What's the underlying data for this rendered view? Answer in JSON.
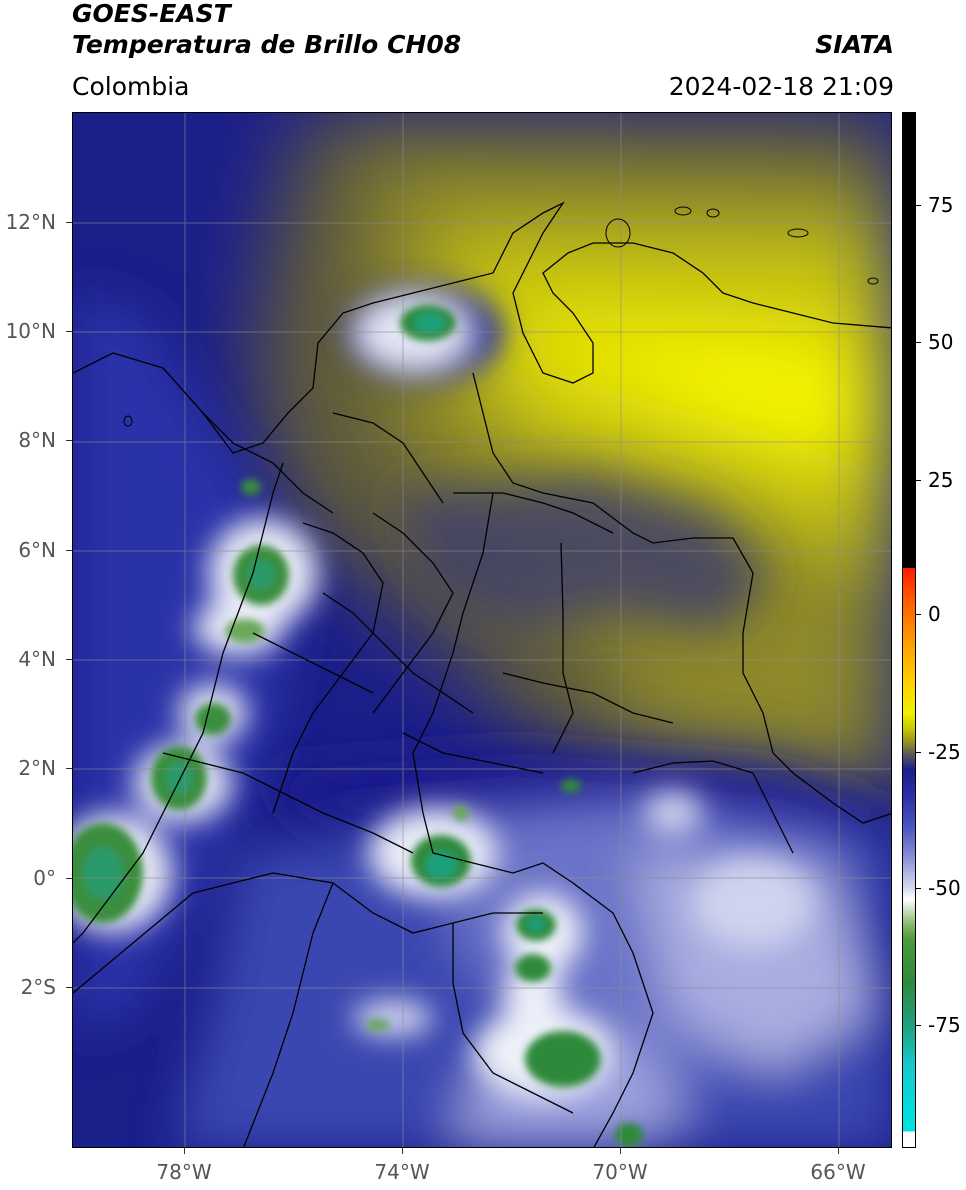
{
  "header": {
    "satellite": "GOES-EAST",
    "product": "Temperatura de Brillo CH08",
    "region": "Colombia",
    "brand": "SIATA",
    "datetime": "2024-02-18 21:09"
  },
  "map": {
    "lat_labels": [
      "12°N",
      "10°N",
      "8°N",
      "6°N",
      "4°N",
      "2°N",
      "0°",
      "2°S"
    ],
    "lon_labels": [
      "78°W",
      "74°W",
      "70°W",
      "66°W"
    ],
    "grid": true,
    "colors": {
      "cold_cloud_deep": "#2e8a3e",
      "cold_cloud_core": "#20b08a",
      "mid_cloud": "#1b1f8a",
      "dry_air": "#8f8a2a",
      "very_dry": "#f5f300",
      "borders": "#000000"
    }
  },
  "colorbar": {
    "labels": [
      "75",
      "50",
      "25",
      "0",
      "-25",
      "-50",
      "-75"
    ]
  }
}
